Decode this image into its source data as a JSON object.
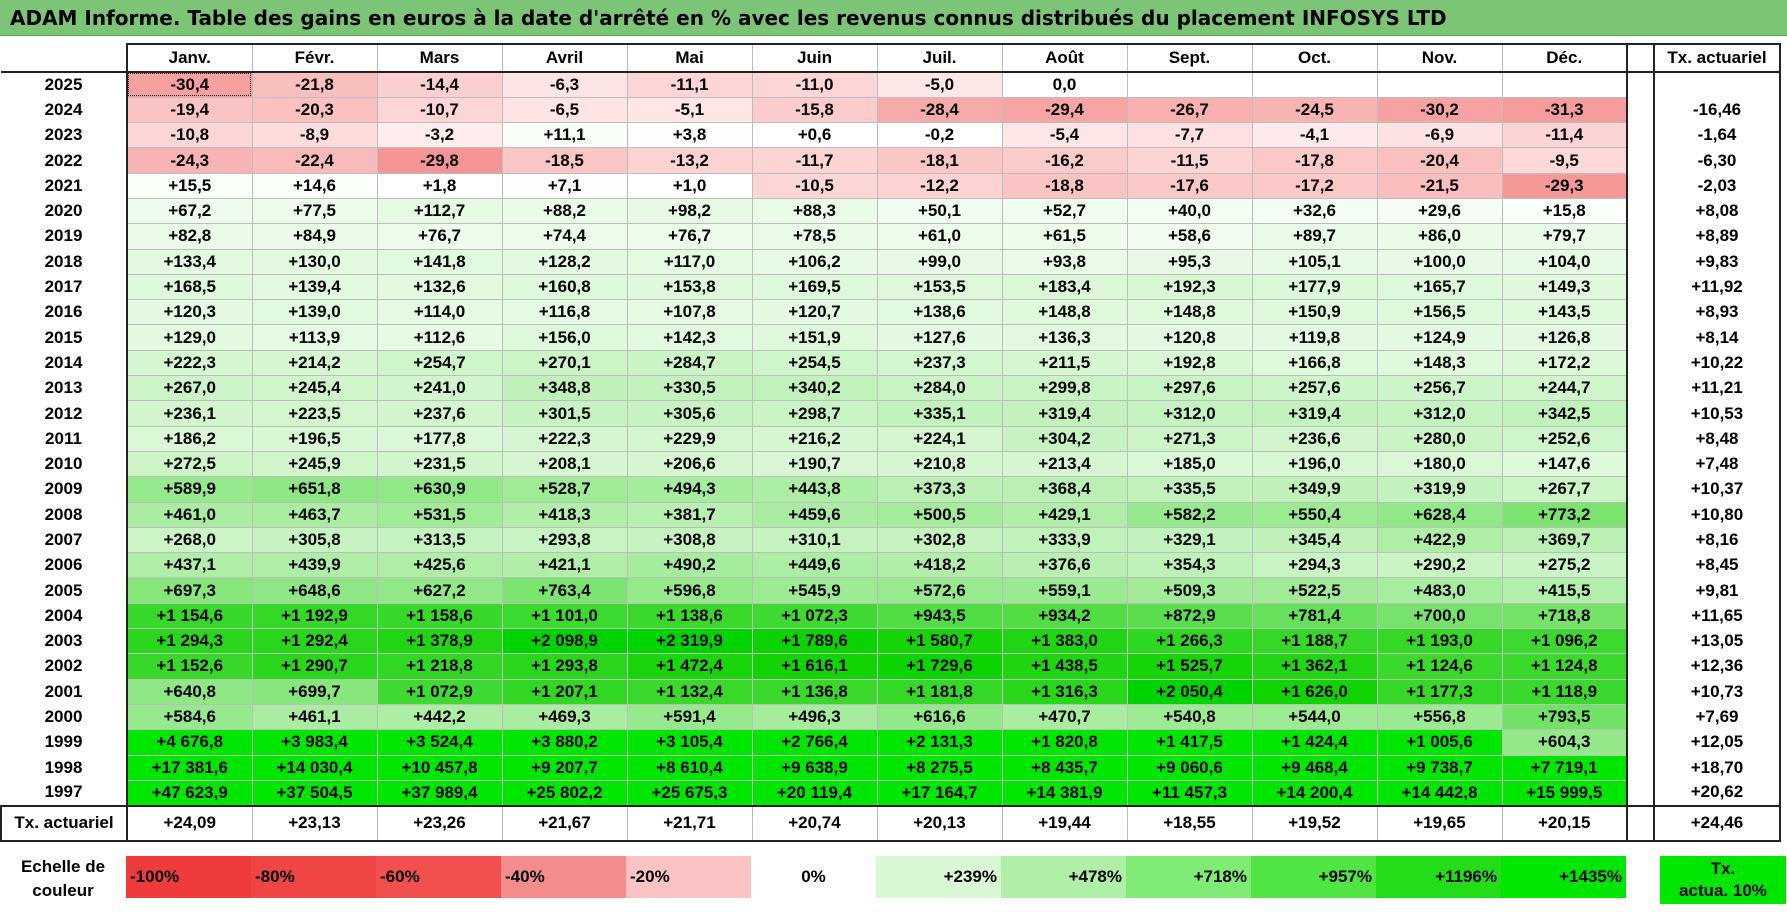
{
  "title": "ADAM Informe. Table des gains en euros à la date d'arrêté en % avec les revenus connus distribués du placement INFOSYS LTD",
  "months": [
    "Janv.",
    "Févr.",
    "Mars",
    "Avril",
    "Mai",
    "Juin",
    "Juil.",
    "Août",
    "Sept.",
    "Oct.",
    "Nov.",
    "Déc."
  ],
  "tx_header": "Tx. actuariel",
  "rows": [
    {
      "year": "2025",
      "vals": [
        "-30,4",
        "-21,8",
        "-14,4",
        "-6,3",
        "-11,1",
        "-11,0",
        "-5,0",
        "0,0",
        "",
        "",
        "",
        ""
      ],
      "colors": [
        "#f6a0a0",
        "#f9bebe",
        "#fbcfcf",
        "#fde4e4",
        "#fcd6d6",
        "#fcd6d6",
        "#fee6e6",
        "#ffffff",
        "#ffffff",
        "#ffffff",
        "#ffffff",
        "#ffffff"
      ],
      "tx": ""
    },
    {
      "year": "2024",
      "vals": [
        "-19,4",
        "-20,3",
        "-10,7",
        "-6,5",
        "-5,1",
        "-15,8",
        "-28,4",
        "-29,4",
        "-26,7",
        "-24,5",
        "-30,2",
        "-31,3"
      ],
      "colors": [
        "#fbc4c4",
        "#fbc0c0",
        "#fcd6d6",
        "#fee4e4",
        "#fee6e6",
        "#fccbcb",
        "#f7aaaa",
        "#f6a4a4",
        "#f8b0b0",
        "#f8b4b4",
        "#f6a2a2",
        "#f59c9c"
      ],
      "tx": "-16,46"
    },
    {
      "year": "2023",
      "vals": [
        "-10,8",
        "-8,9",
        "-3,2",
        "+11,1",
        "+3,8",
        "+0,6",
        "-0,2",
        "-5,4",
        "-7,7",
        "-4,1",
        "-6,9",
        "-11,4"
      ],
      "colors": [
        "#fcd6d6",
        "#fddcdc",
        "#feecec",
        "#f8fdf7",
        "#fcfffc",
        "#ffffff",
        "#ffffff",
        "#fee6e6",
        "#fde0e0",
        "#feeaea",
        "#fde2e2",
        "#fcd4d4"
      ],
      "tx": "-1,64"
    },
    {
      "year": "2022",
      "vals": [
        "-24,3",
        "-22,4",
        "-29,8",
        "-18,5",
        "-13,2",
        "-11,7",
        "-18,1",
        "-16,2",
        "-11,5",
        "-17,8",
        "-20,4",
        "-9,5"
      ],
      "colors": [
        "#f8b4b4",
        "#f9baba",
        "#f49494",
        "#fbc6c6",
        "#fcd2d2",
        "#fcd4d4",
        "#fbc6c6",
        "#fbcaca",
        "#fcd4d4",
        "#fbc8c8",
        "#fac0c0",
        "#fdd8d8"
      ],
      "tx": "-6,30"
    },
    {
      "year": "2021",
      "vals": [
        "+15,5",
        "+14,6",
        "+1,8",
        "+7,1",
        "+1,0",
        "-10,5",
        "-12,2",
        "-18,8",
        "-17,6",
        "-17,2",
        "-21,5",
        "-29,3"
      ],
      "colors": [
        "#fafffa",
        "#fafffa",
        "#ffffff",
        "#fcfffc",
        "#ffffff",
        "#fcd6d6",
        "#fcd2d2",
        "#fbc4c4",
        "#fbc8c8",
        "#fbc8c8",
        "#fabebe",
        "#f49898"
      ],
      "tx": "-2,03"
    },
    {
      "year": "2020",
      "vals": [
        "+67,2",
        "+77,5",
        "+112,7",
        "+88,2",
        "+98,2",
        "+88,3",
        "+50,1",
        "+52,7",
        "+40,0",
        "+32,6",
        "+29,6",
        "+15,8"
      ],
      "colors": [
        "#edfbec",
        "#ecfbea",
        "#e6fae4",
        "#eafbe8",
        "#e8fae6",
        "#eafbe8",
        "#f0fcef",
        "#f0fcee",
        "#f3fdf2",
        "#f4fdf3",
        "#f5fdf4",
        "#fafffa"
      ],
      "tx": "+8,08"
    },
    {
      "year": "2019",
      "vals": [
        "+82,8",
        "+84,9",
        "+76,7",
        "+74,4",
        "+76,7",
        "+78,5",
        "+61,0",
        "+61,5",
        "+58,6",
        "+89,7",
        "+86,0",
        "+79,7"
      ],
      "colors": [
        "#eafbe8",
        "#eafbe8",
        "#ecfbea",
        "#ecfbea",
        "#ecfbea",
        "#ebfbea",
        "#eefcec",
        "#eefcec",
        "#effcee",
        "#e9fbe8",
        "#eafbe8",
        "#ebfbea"
      ],
      "tx": "+8,89"
    },
    {
      "year": "2018",
      "vals": [
        "+133,4",
        "+130,0",
        "+141,8",
        "+128,2",
        "+117,0",
        "+106,2",
        "+99,0",
        "+93,8",
        "+95,3",
        "+105,1",
        "+100,0",
        "+104,0"
      ],
      "colors": [
        "#e3f9e0",
        "#e3f9e0",
        "#e1f9de",
        "#e3f9e1",
        "#e5fae3",
        "#e7fae5",
        "#e8fae6",
        "#e9fbe7",
        "#e8fae6",
        "#e7fae5",
        "#e8fae6",
        "#e7fae5"
      ],
      "tx": "+9,83"
    },
    {
      "year": "2017",
      "vals": [
        "+168,5",
        "+139,4",
        "+132,6",
        "+160,8",
        "+153,8",
        "+169,5",
        "+153,5",
        "+183,4",
        "+192,3",
        "+177,9",
        "+165,7",
        "+149,3"
      ],
      "colors": [
        "#ddf8da",
        "#e1f9de",
        "#e3f9e0",
        "#def8db",
        "#dff8dc",
        "#ddf8da",
        "#dff8dc",
        "#daf8d7",
        "#d9f7d5",
        "#dbf8d8",
        "#ddf8da",
        "#e0f9dd"
      ],
      "tx": "+11,92"
    },
    {
      "year": "2016",
      "vals": [
        "+120,3",
        "+139,0",
        "+114,0",
        "+116,8",
        "+107,8",
        "+120,7",
        "+138,6",
        "+148,8",
        "+148,8",
        "+150,9",
        "+156,5",
        "+143,5"
      ],
      "colors": [
        "#e4f9e2",
        "#e1f9de",
        "#e5fae3",
        "#e5fae3",
        "#e6fae4",
        "#e4f9e2",
        "#e1f9de",
        "#e0f9dd",
        "#e0f9dd",
        "#dff8dc",
        "#def8db",
        "#e0f9dd"
      ],
      "tx": "+8,93"
    },
    {
      "year": "2015",
      "vals": [
        "+129,0",
        "+113,9",
        "+112,6",
        "+156,0",
        "+142,3",
        "+151,9",
        "+127,6",
        "+136,3",
        "+120,8",
        "+119,8",
        "+124,9",
        "+126,8"
      ],
      "colors": [
        "#e3f9e0",
        "#e5fae3",
        "#e6fae4",
        "#def8db",
        "#e1f9de",
        "#dff8dc",
        "#e3f9e1",
        "#e2f9df",
        "#e4f9e2",
        "#e4f9e2",
        "#e4f9e1",
        "#e3f9e1"
      ],
      "tx": "+8,14"
    },
    {
      "year": "2014",
      "vals": [
        "+222,3",
        "+214,2",
        "+254,7",
        "+270,1",
        "+284,7",
        "+254,5",
        "+237,3",
        "+211,5",
        "+192,8",
        "+166,8",
        "+148,3",
        "+172,2"
      ],
      "colors": [
        "#d4f6d0",
        "#d5f6d1",
        "#cff5ca",
        "#ccf4c7",
        "#caf4c5",
        "#cff5ca",
        "#d2f6cd",
        "#d5f6d1",
        "#d9f7d5",
        "#ddf8da",
        "#e0f9dd",
        "#dcf8d9"
      ],
      "tx": "+10,22"
    },
    {
      "year": "2013",
      "vals": [
        "+267,0",
        "+245,4",
        "+241,0",
        "+348,8",
        "+330,5",
        "+340,2",
        "+284,0",
        "+299,8",
        "+297,6",
        "+257,6",
        "+256,7",
        "+244,7"
      ],
      "colors": [
        "#cdf4c8",
        "#d0f5cb",
        "#d1f5cc",
        "#c0f1ba",
        "#c3f2bd",
        "#c1f2bb",
        "#caf4c5",
        "#c8f3c2",
        "#c8f3c2",
        "#cef5c9",
        "#cef5c9",
        "#d0f5cb"
      ],
      "tx": "+11,21"
    },
    {
      "year": "2012",
      "vals": [
        "+236,1",
        "+223,5",
        "+237,6",
        "+301,5",
        "+305,6",
        "+298,7",
        "+335,1",
        "+319,4",
        "+312,0",
        "+319,4",
        "+312,0",
        "+342,5"
      ],
      "colors": [
        "#d2f5cd",
        "#d4f6cf",
        "#d2f5cd",
        "#c7f3c2",
        "#c6f3c1",
        "#c8f3c2",
        "#c2f2bc",
        "#c4f2bf",
        "#c5f3c0",
        "#c4f2bf",
        "#c5f3c0",
        "#c1f2bb"
      ],
      "tx": "+10,53"
    },
    {
      "year": "2011",
      "vals": [
        "+186,2",
        "+196,5",
        "+177,8",
        "+222,3",
        "+229,9",
        "+216,2",
        "+224,1",
        "+304,2",
        "+271,3",
        "+236,6",
        "+280,0",
        "+252,6"
      ],
      "colors": [
        "#daf7d6",
        "#d8f7d4",
        "#dbf8d8",
        "#d4f6d0",
        "#d3f6ce",
        "#d5f6d1",
        "#d4f6cf",
        "#c6f3c1",
        "#ccf4c6",
        "#d2f5cd",
        "#cbf4c5",
        "#cff5ca"
      ],
      "tx": "+8,48"
    },
    {
      "year": "2010",
      "vals": [
        "+272,5",
        "+245,9",
        "+231,5",
        "+208,1",
        "+206,6",
        "+190,7",
        "+210,8",
        "+213,4",
        "+185,0",
        "+196,0",
        "+180,0",
        "+147,6"
      ],
      "colors": [
        "#ccf4c6",
        "#d0f5cb",
        "#d2f5ce",
        "#d6f6d2",
        "#d6f6d2",
        "#d9f7d5",
        "#d5f6d1",
        "#d5f6d1",
        "#daf7d7",
        "#d8f7d4",
        "#dbf7d7",
        "#e0f9dd"
      ],
      "tx": "+7,48"
    },
    {
      "year": "2009",
      "vals": [
        "+589,9",
        "+651,8",
        "+630,9",
        "+528,7",
        "+494,3",
        "+443,8",
        "+373,3",
        "+368,4",
        "+335,5",
        "+349,9",
        "+319,9",
        "+267,7"
      ],
      "colors": [
        "#96e98d",
        "#8ee784",
        "#91e887",
        "#a0eb97",
        "#a5ec9d",
        "#adeea5",
        "#baf0b3",
        "#bbf0b4",
        "#c1f2bb",
        "#bff1b8",
        "#c4f2bf",
        "#cdf4c7"
      ],
      "tx": "+10,37"
    },
    {
      "year": "2008",
      "vals": [
        "+461,0",
        "+463,7",
        "+531,5",
        "+418,3",
        "+381,7",
        "+459,6",
        "+500,5",
        "+429,1",
        "+582,2",
        "+550,4",
        "+628,4",
        "+773,2"
      ],
      "colors": [
        "#aaeda2",
        "#aaeda1",
        "#9feb96",
        "#b1efa9",
        "#b8f0b1",
        "#aaeda2",
        "#a4ec9b",
        "#b0eea8",
        "#97e98e",
        "#9ceb93",
        "#91e887",
        "#7ae46e"
      ],
      "tx": "+10,80"
    },
    {
      "year": "2007",
      "vals": [
        "+268,0",
        "+305,8",
        "+313,5",
        "+293,8",
        "+308,8",
        "+310,1",
        "+302,8",
        "+333,9",
        "+329,1",
        "+345,4",
        "+422,9",
        "+369,7"
      ],
      "colors": [
        "#ccf4c7",
        "#c6f3c1",
        "#c5f3c0",
        "#c8f3c3",
        "#c6f3c1",
        "#c6f3c0",
        "#c7f3c1",
        "#c2f2bc",
        "#c2f2bd",
        "#bff1b9",
        "#b0eea8",
        "#bbf0b4"
      ],
      "tx": "+8,16"
    },
    {
      "year": "2006",
      "vals": [
        "+437,1",
        "+439,9",
        "+425,6",
        "+421,1",
        "+490,2",
        "+449,6",
        "+418,2",
        "+376,6",
        "+354,3",
        "+294,3",
        "+290,2",
        "+275,2"
      ],
      "colors": [
        "#aeeea6",
        "#aeeea6",
        "#b0eea8",
        "#b1efa9",
        "#a6ec9e",
        "#acedA4",
        "#b1efa9",
        "#b9f0b2",
        "#bdf1b7",
        "#c8f3c3",
        "#c9f3c3",
        "#cbf4c6"
      ],
      "tx": "+8,45"
    },
    {
      "year": "2005",
      "vals": [
        "+697,3",
        "+648,6",
        "+627,2",
        "+763,4",
        "+596,8",
        "+545,9",
        "+572,6",
        "+559,1",
        "+509,3",
        "+522,5",
        "+483,0",
        "+415,5"
      ],
      "colors": [
        "#87e67c",
        "#8ee784",
        "#91e887",
        "#7be46f",
        "#95e98b",
        "#9ceb93",
        "#98ea8f",
        "#9aea91",
        "#a2ec99",
        "#a1eb98",
        "#a7ed9f",
        "#b1efaa"
      ],
      "tx": "+9,81"
    },
    {
      "year": "2004",
      "vals": [
        "+1 154,6",
        "+1 192,9",
        "+1 158,6",
        "+1 101,0",
        "+1 138,6",
        "+1 072,3",
        "+943,5",
        "+934,2",
        "+872,9",
        "+781,4",
        "+700,0",
        "+718,8"
      ],
      "colors": [
        "#38d82a",
        "#35d826",
        "#38d82a",
        "#3cd92e",
        "#39d82b",
        "#3fda31",
        "#51dd44",
        "#52dd45",
        "#5ade4e",
        "#67e05b",
        "#78e36c",
        "#75e368"
      ],
      "tx": "+11,65"
    },
    {
      "year": "2003",
      "vals": [
        "+1 294,3",
        "+1 292,4",
        "+1 378,9",
        "+2 098,9",
        "+2 319,9",
        "+1 789,6",
        "+1 580,7",
        "+1 383,0",
        "+1 266,3",
        "+1 188,7",
        "+1 193,0",
        "+1 096,2"
      ],
      "colors": [
        "#2ad61c",
        "#2ad61c",
        "#20d511",
        "#00d400",
        "#00d400",
        "#0ad400",
        "#16d407",
        "#20d511",
        "#2ed720",
        "#35d827",
        "#35d826",
        "#3cd92e"
      ],
      "tx": "+13,05"
    },
    {
      "year": "2002",
      "vals": [
        "+1 152,6",
        "+1 290,7",
        "+1 218,8",
        "+1 293,8",
        "+1 472,4",
        "+1 616,1",
        "+1 729,6",
        "+1 438,5",
        "+1 525,7",
        "+1 362,1",
        "+1 124,6",
        "+1 124,8"
      ],
      "colors": [
        "#38d82a",
        "#2ad61c",
        "#31d723",
        "#2ad61c",
        "#1ad50b",
        "#12d403",
        "#0cd400",
        "#1ed50f",
        "#17d408",
        "#22d513",
        "#3ad92c",
        "#3ad92c"
      ],
      "tx": "+12,36"
    },
    {
      "year": "2001",
      "vals": [
        "+640,8",
        "+699,7",
        "+1 072,9",
        "+1 207,1",
        "+1 132,4",
        "+1 136,8",
        "+1 181,8",
        "+1 316,3",
        "+2 050,4",
        "+1 626,0",
        "+1 177,3",
        "+1 118,9"
      ],
      "colors": [
        "#8fe785",
        "#87e67c",
        "#3fda31",
        "#32d724",
        "#39d82b",
        "#39d82b",
        "#36d828",
        "#28d61a",
        "#00d400",
        "#12d403",
        "#36d828",
        "#3bd92d"
      ],
      "tx": "+10,73"
    },
    {
      "year": "2000",
      "vals": [
        "+584,6",
        "+461,1",
        "+442,2",
        "+469,3",
        "+591,4",
        "+496,3",
        "+616,6",
        "+470,7",
        "+540,8",
        "+544,0",
        "+556,8",
        "+793,5"
      ],
      "colors": [
        "#97e98e",
        "#aaeda2",
        "#adeea5",
        "#a9eda1",
        "#96e98d",
        "#a5ec9c",
        "#93e889",
        "#a9eda1",
        "#9ceb93",
        "#9ceb93",
        "#9aea91",
        "#71e264"
      ],
      "tx": "+7,69"
    },
    {
      "year": "1999",
      "vals": [
        "+4 676,8",
        "+3 983,4",
        "+3 524,4",
        "+3 880,2",
        "+3 105,4",
        "+2 766,4",
        "+2 131,3",
        "+1 820,8",
        "+1 417,5",
        "+1 424,4",
        "+1 005,6",
        "+604,3"
      ],
      "colors": [
        "#00e600",
        "#00e600",
        "#00e600",
        "#00e600",
        "#00e600",
        "#00e600",
        "#00e600",
        "#00e600",
        "#00e600",
        "#00e600",
        "#00e600",
        "#94e88a"
      ],
      "tx": "+12,05"
    },
    {
      "year": "1998",
      "vals": [
        "+17 381,6",
        "+14 030,4",
        "+10 457,8",
        "+9 207,7",
        "+8 610,4",
        "+9 638,9",
        "+8 275,5",
        "+8 435,7",
        "+9 060,6",
        "+9 468,4",
        "+9 738,7",
        "+7 719,1"
      ],
      "colors": [
        "#00e600",
        "#00e600",
        "#00e600",
        "#00e600",
        "#00e600",
        "#00e600",
        "#00e600",
        "#00e600",
        "#00e600",
        "#00e600",
        "#00e600",
        "#00e600"
      ],
      "tx": "+18,70"
    },
    {
      "year": "1997",
      "vals": [
        "+47 623,9",
        "+37 504,5",
        "+37 989,4",
        "+25 802,2",
        "+25 675,3",
        "+20 119,4",
        "+17 164,7",
        "+14 381,9",
        "+11 457,3",
        "+14 200,4",
        "+14 442,8",
        "+15 999,5"
      ],
      "colors": [
        "#00e600",
        "#00e600",
        "#00e600",
        "#00e600",
        "#00e600",
        "#00e600",
        "#00e600",
        "#00e600",
        "#00e600",
        "#00e600",
        "#00e600",
        "#00e600"
      ],
      "tx": "+20,62"
    }
  ],
  "footer": {
    "label": "Tx. actuariel",
    "vals": [
      "+24,09",
      "+23,13",
      "+23,26",
      "+21,67",
      "+21,71",
      "+20,74",
      "+20,13",
      "+19,44",
      "+18,55",
      "+19,52",
      "+19,65",
      "+20,15"
    ],
    "tx": "+24,46"
  },
  "scale": {
    "label": "Echelle de\ncouleur",
    "items": [
      {
        "text": "-100%",
        "color": "#ef3b3b",
        "align": "left"
      },
      {
        "text": "-80%",
        "color": "#f04545",
        "align": "left"
      },
      {
        "text": "-60%",
        "color": "#f24f4f",
        "align": "left"
      },
      {
        "text": "-40%",
        "color": "#f58c8c",
        "align": "left"
      },
      {
        "text": "-20%",
        "color": "#fbc3c3",
        "align": "left"
      },
      {
        "text": "0%",
        "color": "#ffffff",
        "align": "center"
      },
      {
        "text": "+239%",
        "color": "#d8f8d4",
        "align": "right"
      },
      {
        "text": "+478%",
        "color": "#aff0a6",
        "align": "right"
      },
      {
        "text": "+718%",
        "color": "#80ec75",
        "align": "right"
      },
      {
        "text": "+957%",
        "color": "#4fe643",
        "align": "right"
      },
      {
        "text": "+1196%",
        "color": "#22dd17",
        "align": "right"
      },
      {
        "text": "+1435%",
        "color": "#00e600",
        "align": "right"
      }
    ],
    "tx_label": "Tx.\nactua. 10%"
  }
}
